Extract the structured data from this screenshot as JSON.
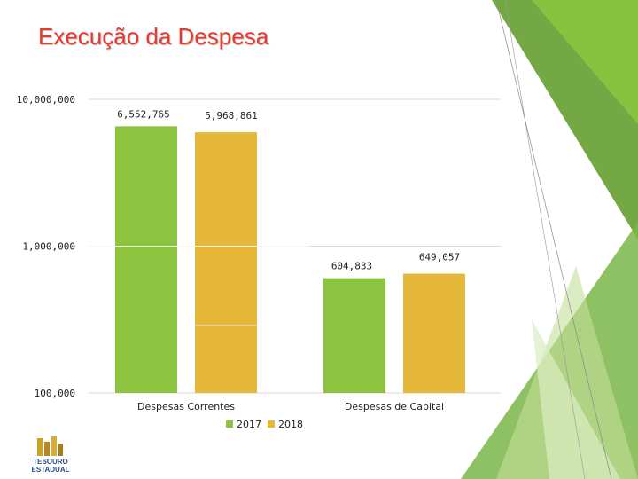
{
  "slide": {
    "title": "Execução da Despesa",
    "logo_text": [
      "TESOURO",
      "ESTADUAL"
    ]
  },
  "colors": {
    "title": "#e8382f",
    "series_2017": "#8cc43f",
    "series_2018": "#e5b83a",
    "decoration_green": "#7ab648",
    "gridline": "#d9d9d9"
  },
  "chart_data": {
    "type": "bar",
    "log_scale": true,
    "ylim": [
      100000,
      10000000
    ],
    "y_ticks": [
      "10,000,000",
      "1,000,000",
      "100,000"
    ],
    "categories": [
      "Despesas Correntes",
      "Despesas de Capital"
    ],
    "series": [
      {
        "name": "2017",
        "values": [
          6552765,
          604833
        ],
        "labels": [
          "6,552,765",
          "604,833"
        ]
      },
      {
        "name": "2018",
        "values": [
          5968861,
          649057
        ],
        "labels": [
          "5,968,861",
          "649,057"
        ]
      }
    ],
    "legend_position": "bottom",
    "grid": true
  }
}
